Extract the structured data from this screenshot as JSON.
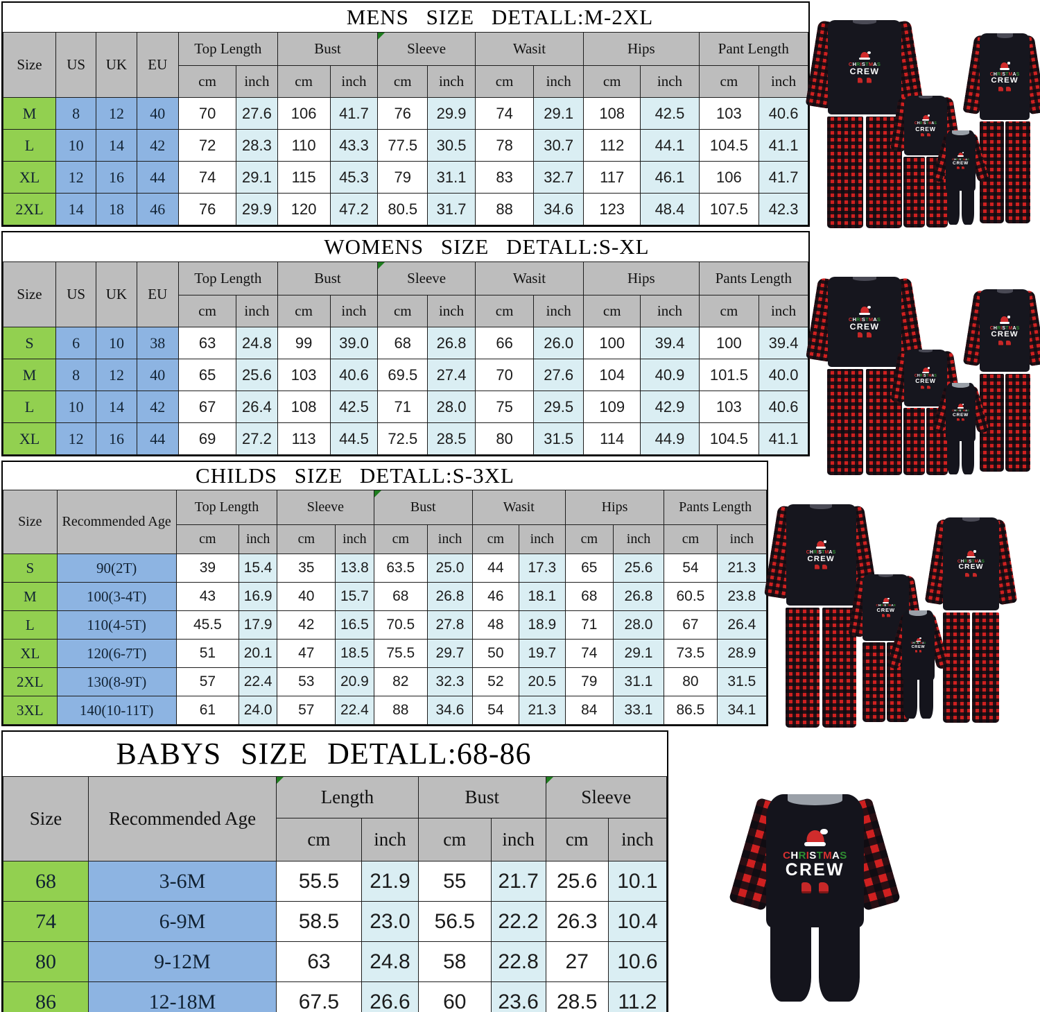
{
  "page": {
    "background": "#ffffff"
  },
  "colors": {
    "header_gray": "#bdbdbd",
    "size_green": "#92d050",
    "left_blue": "#8db4e2",
    "inch_lightblue": "#daeef3",
    "plaid_red": "#cf2020",
    "pajama_black": "#16161e"
  },
  "product_graphic": {
    "line1": "CHRISTMAS",
    "line2": "CREW"
  },
  "product_images": [
    {
      "id": "family-1",
      "alt": "family matching christmas crew plaid pajamas - dad, child, baby, mom"
    },
    {
      "id": "family-2",
      "alt": "family matching christmas crew plaid pajamas - dad, child, baby, mom"
    },
    {
      "id": "family-3",
      "alt": "family matching christmas crew plaid pajamas - dad, child, baby, mom"
    },
    {
      "id": "baby-4",
      "alt": "baby christmas crew plaid romper"
    }
  ],
  "tables": [
    {
      "id": "mens",
      "title": "MENS SIZE DETALL:M-2XL",
      "left_headers": [
        "Size",
        "US",
        "UK",
        "EU"
      ],
      "groups": [
        "Top Length",
        "Bust",
        "Sleeve",
        "Wasit",
        "Hips",
        "Pant Length"
      ],
      "units": [
        "cm",
        "inch"
      ],
      "rows": [
        {
          "size": "M",
          "left": [
            "8",
            "12",
            "40"
          ],
          "values": [
            "70",
            "27.6",
            "106",
            "41.7",
            "76",
            "29.9",
            "74",
            "29.1",
            "108",
            "42.5",
            "103",
            "40.6"
          ]
        },
        {
          "size": "L",
          "left": [
            "10",
            "14",
            "42"
          ],
          "values": [
            "72",
            "28.3",
            "110",
            "43.3",
            "77.5",
            "30.5",
            "78",
            "30.7",
            "112",
            "44.1",
            "104.5",
            "41.1"
          ]
        },
        {
          "size": "XL",
          "left": [
            "12",
            "16",
            "44"
          ],
          "values": [
            "74",
            "29.1",
            "115",
            "45.3",
            "79",
            "31.1",
            "83",
            "32.7",
            "117",
            "46.1",
            "106",
            "41.7"
          ]
        },
        {
          "size": "2XL",
          "left": [
            "14",
            "18",
            "46"
          ],
          "values": [
            "76",
            "29.9",
            "120",
            "47.2",
            "80.5",
            "31.7",
            "88",
            "34.6",
            "123",
            "48.4",
            "107.5",
            "42.3"
          ]
        }
      ]
    },
    {
      "id": "womens",
      "title": "WOMENS SIZE DETALL:S-XL",
      "left_headers": [
        "Size",
        "US",
        "UK",
        "EU"
      ],
      "groups": [
        "Top Length",
        "Bust",
        "Sleeve",
        "Wasit",
        "Hips",
        "Pants Length"
      ],
      "units": [
        "cm",
        "inch"
      ],
      "rows": [
        {
          "size": "S",
          "left": [
            "6",
            "10",
            "38"
          ],
          "values": [
            "63",
            "24.8",
            "99",
            "39.0",
            "68",
            "26.8",
            "66",
            "26.0",
            "100",
            "39.4",
            "100",
            "39.4"
          ]
        },
        {
          "size": "M",
          "left": [
            "8",
            "12",
            "40"
          ],
          "values": [
            "65",
            "25.6",
            "103",
            "40.6",
            "69.5",
            "27.4",
            "70",
            "27.6",
            "104",
            "40.9",
            "101.5",
            "40.0"
          ]
        },
        {
          "size": "L",
          "left": [
            "10",
            "14",
            "42"
          ],
          "values": [
            "67",
            "26.4",
            "108",
            "42.5",
            "71",
            "28.0",
            "75",
            "29.5",
            "109",
            "42.9",
            "103",
            "40.6"
          ]
        },
        {
          "size": "XL",
          "left": [
            "12",
            "16",
            "44"
          ],
          "values": [
            "69",
            "27.2",
            "113",
            "44.5",
            "72.5",
            "28.5",
            "80",
            "31.5",
            "114",
            "44.9",
            "104.5",
            "41.1"
          ]
        }
      ]
    },
    {
      "id": "childs",
      "title": "CHILDS SIZE DETALL:S-3XL",
      "left_headers": [
        "Size",
        "Recommended Age"
      ],
      "groups": [
        "Top Length",
        "Sleeve",
        "Bust",
        "Wasit",
        "Hips",
        "Pants Length"
      ],
      "units": [
        "cm",
        "inch"
      ],
      "rows": [
        {
          "size": "S",
          "left": [
            "90(2T)"
          ],
          "values": [
            "39",
            "15.4",
            "35",
            "13.8",
            "63.5",
            "25.0",
            "44",
            "17.3",
            "65",
            "25.6",
            "54",
            "21.3"
          ]
        },
        {
          "size": "M",
          "left": [
            "100(3-4T)"
          ],
          "values": [
            "43",
            "16.9",
            "40",
            "15.7",
            "68",
            "26.8",
            "46",
            "18.1",
            "68",
            "26.8",
            "60.5",
            "23.8"
          ]
        },
        {
          "size": "L",
          "left": [
            "110(4-5T)"
          ],
          "values": [
            "45.5",
            "17.9",
            "42",
            "16.5",
            "70.5",
            "27.8",
            "48",
            "18.9",
            "71",
            "28.0",
            "67",
            "26.4"
          ]
        },
        {
          "size": "XL",
          "left": [
            "120(6-7T)"
          ],
          "values": [
            "51",
            "20.1",
            "47",
            "18.5",
            "75.5",
            "29.7",
            "50",
            "19.7",
            "74",
            "29.1",
            "73.5",
            "28.9"
          ]
        },
        {
          "size": "2XL",
          "left": [
            "130(8-9T)"
          ],
          "values": [
            "57",
            "22.4",
            "53",
            "20.9",
            "82",
            "32.3",
            "52",
            "20.5",
            "79",
            "31.1",
            "80",
            "31.5"
          ]
        },
        {
          "size": "3XL",
          "left": [
            "140(10-11T)"
          ],
          "values": [
            "61",
            "24.0",
            "57",
            "22.4",
            "88",
            "34.6",
            "54",
            "21.3",
            "84",
            "33.1",
            "86.5",
            "34.1"
          ]
        }
      ]
    },
    {
      "id": "babys",
      "title": "BABYS SIZE DETALL:68-86",
      "left_headers": [
        "Size",
        "Recommended Age"
      ],
      "groups": [
        "Length",
        "Bust",
        "Sleeve"
      ],
      "units": [
        "cm",
        "inch"
      ],
      "rows": [
        {
          "size": "68",
          "left": [
            "3-6M"
          ],
          "values": [
            "55.5",
            "21.9",
            "55",
            "21.7",
            "25.6",
            "10.1"
          ]
        },
        {
          "size": "74",
          "left": [
            "6-9M"
          ],
          "values": [
            "58.5",
            "23.0",
            "56.5",
            "22.2",
            "26.3",
            "10.4"
          ]
        },
        {
          "size": "80",
          "left": [
            "9-12M"
          ],
          "values": [
            "63",
            "24.8",
            "58",
            "22.8",
            "27",
            "10.6"
          ]
        },
        {
          "size": "86",
          "left": [
            "12-18M"
          ],
          "values": [
            "67.5",
            "26.6",
            "60",
            "23.6",
            "28.5",
            "11.2"
          ]
        }
      ]
    }
  ]
}
